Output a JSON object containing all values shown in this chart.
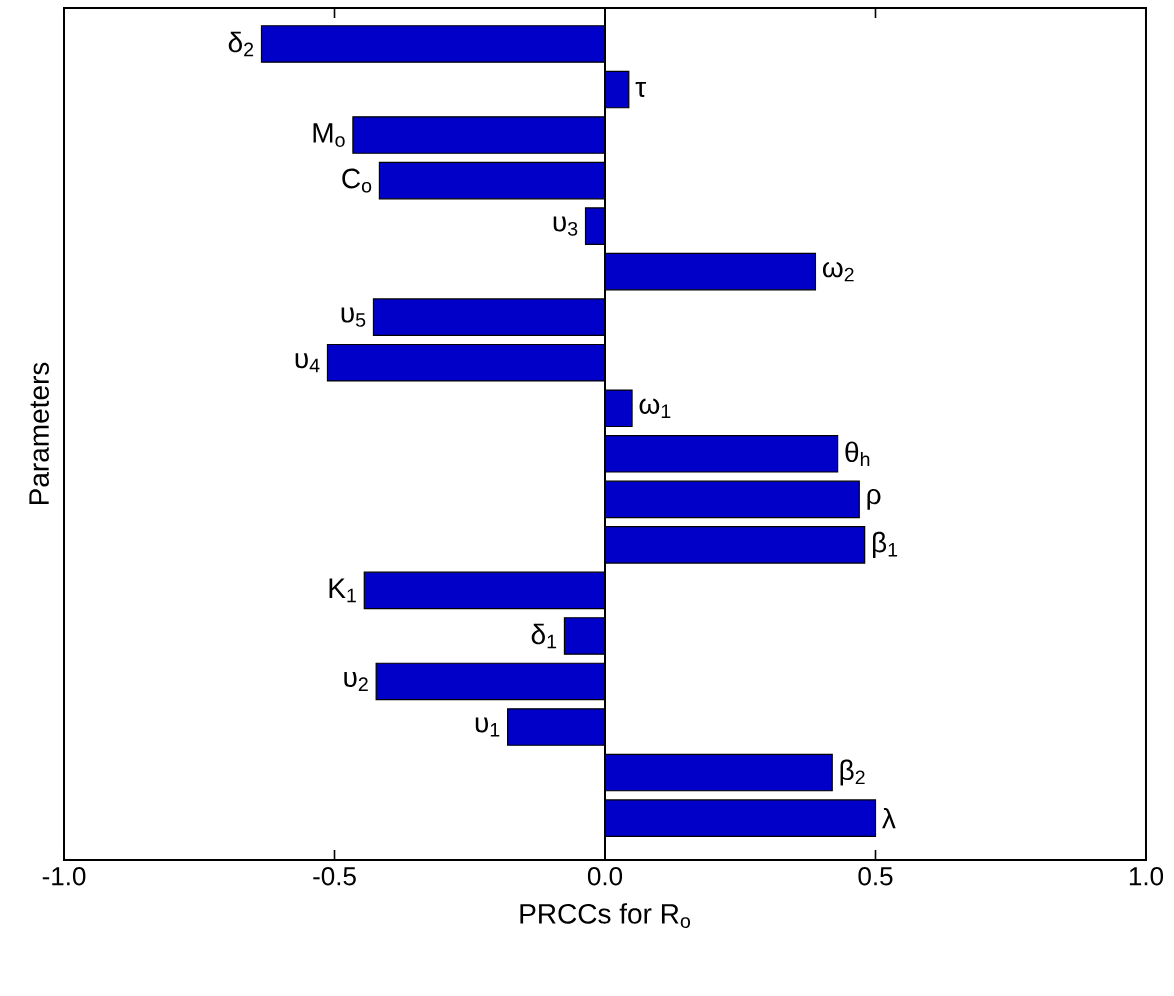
{
  "chart_data": {
    "type": "bar",
    "orientation": "horizontal",
    "xlabel": "PRCCs for R$_{o}$",
    "ylabel": "Parameters",
    "categories": [
      "δ$_{2}$",
      "τ",
      "M$_{o}$",
      "C$_{o}$",
      "υ$_{3}$",
      "ω$_{2}$",
      "υ$_{5}$",
      "υ$_{4}$",
      "ω$_{1}$",
      "θ$_{h}$",
      "ρ",
      "β$_{1}$",
      "K$_{1}$",
      "δ$_{1}$",
      "υ$_{2}$",
      "υ$_{1}$",
      "β$_{2}$",
      "λ"
    ],
    "values": [
      -0.635,
      0.044,
      -0.466,
      -0.417,
      -0.036,
      0.389,
      -0.428,
      -0.513,
      0.05,
      0.43,
      0.47,
      0.48,
      -0.445,
      -0.075,
      -0.423,
      -0.18,
      0.42,
      0.5
    ],
    "color": "#0000c8",
    "xlim": [
      -1.0,
      1.0
    ],
    "xticks": [
      {
        "value": -1.0,
        "label": "-1.0"
      },
      {
        "value": -0.5,
        "label": "-0.5"
      },
      {
        "value": 0.0,
        "label": "0.0"
      },
      {
        "value": 0.5,
        "label": "0.5"
      },
      {
        "value": 1.0,
        "label": "1.0"
      }
    ],
    "tick_labels": "x"
  }
}
